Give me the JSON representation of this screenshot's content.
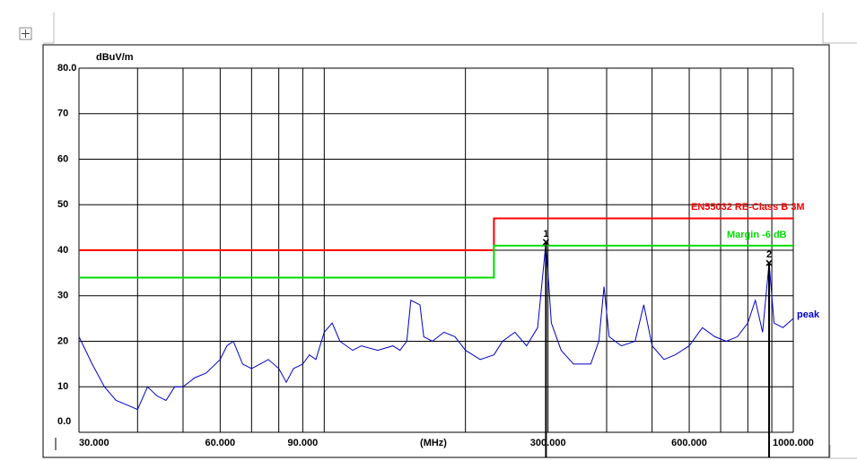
{
  "chart_data": {
    "type": "line",
    "xscale": "log",
    "ylabel": "dBuV/m",
    "xlabel": "(MHz)",
    "xlim": [
      30,
      1000
    ],
    "ylim": [
      0,
      80
    ],
    "xticks": [
      {
        "value": 30,
        "label": "30.000"
      },
      {
        "value": 60,
        "label": "60.000"
      },
      {
        "value": 90,
        "label": "90.000"
      },
      {
        "value": 300,
        "label": "300.000"
      },
      {
        "value": 600,
        "label": "600.000"
      },
      {
        "value": 1000,
        "label": "1000.000"
      }
    ],
    "xgrid": [
      30,
      40,
      50,
      60,
      70,
      80,
      90,
      100,
      200,
      300,
      400,
      500,
      600,
      700,
      800,
      900,
      1000
    ],
    "yticks": [
      {
        "value": 0,
        "label": "0.0"
      },
      10,
      20,
      30,
      40,
      50,
      60,
      70,
      {
        "value": 80,
        "label": "80.0"
      }
    ],
    "grid": true,
    "series": [
      {
        "name": "EN55032 RE-Class B 3M",
        "color": "#ff0000",
        "x": [
          30,
          230,
          230,
          1000
        ],
        "values": [
          40,
          40,
          47,
          47
        ]
      },
      {
        "name": "Margin -6 dB",
        "color": "#00dd00",
        "x": [
          30,
          230,
          230,
          1000
        ],
        "values": [
          34,
          34,
          41,
          41
        ]
      },
      {
        "name": "peak",
        "color": "#0000cc",
        "x": [
          30,
          32,
          34,
          36,
          38,
          40,
          42,
          44,
          46,
          48,
          50,
          53,
          56,
          60,
          62,
          64,
          67,
          70,
          73,
          76,
          80,
          83,
          86,
          90,
          93,
          96,
          100,
          104,
          108,
          115,
          120,
          130,
          140,
          145,
          150,
          153,
          160,
          163,
          170,
          180,
          190,
          200,
          215,
          230,
          240,
          255,
          270,
          285,
          297,
          305,
          320,
          340,
          370,
          385,
          395,
          405,
          430,
          460,
          480,
          500,
          530,
          560,
          600,
          640,
          680,
          720,
          760,
          800,
          830,
          860,
          888,
          910,
          950,
          1000
        ],
        "values": [
          21,
          15,
          10,
          7,
          6,
          5,
          10,
          8,
          7,
          10,
          10,
          12,
          13,
          16,
          19,
          20,
          15,
          14,
          15,
          16,
          14,
          11,
          14,
          15,
          17,
          16,
          22,
          24,
          20,
          18,
          19,
          18,
          19,
          18,
          20,
          29,
          28,
          21,
          20,
          22,
          21,
          18,
          16,
          17,
          20,
          22,
          19,
          23,
          41.8,
          24,
          18,
          15,
          15,
          20,
          32,
          21,
          19,
          20,
          28,
          19,
          16,
          17,
          19,
          23,
          21,
          20,
          21,
          24,
          29,
          22,
          37.2,
          24,
          23,
          25
        ]
      }
    ],
    "markers": [
      {
        "label": "1",
        "x": 297,
        "value": 41.8
      },
      {
        "label": "2",
        "x": 888,
        "value": 37.2
      }
    ]
  }
}
